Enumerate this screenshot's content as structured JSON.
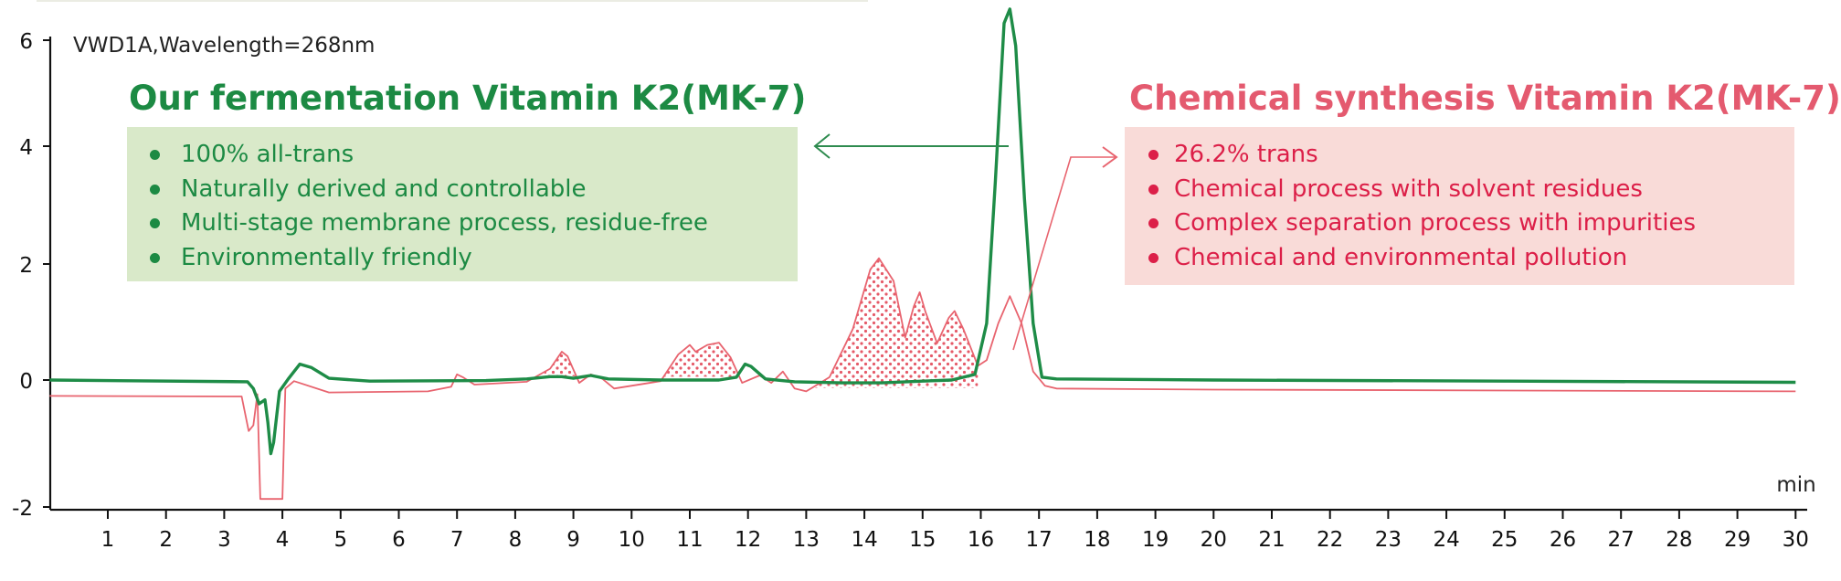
{
  "signal_label": "VWD1A,Wavelength=268nm",
  "left_panel": {
    "title": "Our fermentation Vitamin K2(MK-7)",
    "items": [
      "100% all-trans",
      "Naturally derived and controllable",
      "Multi-stage membrane process, residue-free",
      "Environmentally friendly"
    ],
    "color": "#1c8a43",
    "background": "#d9e9c9"
  },
  "right_panel": {
    "title": "Chemical synthesis Vitamin K2(MK-7)",
    "items": [
      "26.2% trans",
      "Chemical process with solvent residues",
      "Complex separation process with impurities",
      "Chemical and environmental pollution"
    ],
    "color": "#dc1f48",
    "background": "#f9dbd8"
  },
  "chart_data": {
    "type": "line",
    "x_unit_label": "min",
    "x_ticks": [
      1,
      2,
      3,
      4,
      5,
      6,
      7,
      8,
      9,
      10,
      11,
      12,
      13,
      14,
      15,
      16,
      17,
      18,
      19,
      20,
      21,
      22,
      23,
      24,
      25,
      26,
      27,
      28,
      29,
      30
    ],
    "y_ticks": [
      6,
      4,
      2,
      0,
      -2
    ],
    "xlim": [
      0.1,
      30.2
    ],
    "ylim": [
      -2.1,
      6.6
    ],
    "series": [
      {
        "color": "#1e8c47",
        "points": [
          [
            0,
            0
          ],
          [
            3.4,
            -0.03
          ],
          [
            3.5,
            -0.15
          ],
          [
            3.6,
            -0.42
          ],
          [
            3.7,
            -0.35
          ],
          [
            3.75,
            -0.75
          ],
          [
            3.8,
            -1.3
          ],
          [
            3.85,
            -1.1
          ],
          [
            3.95,
            -0.2
          ],
          [
            4.1,
            0.02
          ],
          [
            4.3,
            0.28
          ],
          [
            4.5,
            0.22
          ],
          [
            4.8,
            0.03
          ],
          [
            5.5,
            -0.02
          ],
          [
            7.5,
            -0.01
          ],
          [
            8.2,
            0.02
          ],
          [
            8.6,
            0.06
          ],
          [
            8.8,
            0.06
          ],
          [
            9.0,
            0.03
          ],
          [
            9.3,
            0.08
          ],
          [
            9.6,
            0.02
          ],
          [
            10.5,
            0
          ],
          [
            11.5,
            0
          ],
          [
            11.8,
            0.05
          ],
          [
            11.95,
            0.28
          ],
          [
            12.05,
            0.24
          ],
          [
            12.3,
            0.02
          ],
          [
            12.8,
            -0.03
          ],
          [
            13.6,
            -0.05
          ],
          [
            14.3,
            -0.05
          ],
          [
            15.0,
            -0.02
          ],
          [
            15.5,
            0
          ],
          [
            15.9,
            0.1
          ],
          [
            16.1,
            1.0
          ],
          [
            16.25,
            3.5
          ],
          [
            16.4,
            6.3
          ],
          [
            16.5,
            6.55
          ],
          [
            16.6,
            5.9
          ],
          [
            16.75,
            3.2
          ],
          [
            16.9,
            1.0
          ],
          [
            17.05,
            0.05
          ],
          [
            17.3,
            0.02
          ],
          [
            20,
            0
          ],
          [
            25,
            -0.02
          ],
          [
            30,
            -0.04
          ]
        ]
      },
      {
        "color": "#e8646f",
        "points": [
          [
            0,
            -0.28
          ],
          [
            3.3,
            -0.29
          ],
          [
            3.42,
            -0.9
          ],
          [
            3.5,
            -0.8
          ],
          [
            3.57,
            -0.25
          ],
          [
            3.62,
            -2.1
          ],
          [
            4.0,
            -2.1
          ],
          [
            4.05,
            -0.15
          ],
          [
            4.2,
            -0.02
          ],
          [
            4.8,
            -0.22
          ],
          [
            6.5,
            -0.2
          ],
          [
            6.9,
            -0.12
          ],
          [
            7.0,
            0.1
          ],
          [
            7.1,
            0.05
          ],
          [
            7.3,
            -0.08
          ],
          [
            8.2,
            -0.03
          ],
          [
            8.6,
            0.2
          ],
          [
            8.8,
            0.5
          ],
          [
            8.9,
            0.42
          ],
          [
            9.1,
            -0.05
          ],
          [
            9.3,
            0.1
          ],
          [
            9.5,
            0.02
          ],
          [
            9.7,
            -0.15
          ],
          [
            10.5,
            -0.02
          ],
          [
            10.8,
            0.45
          ],
          [
            11.0,
            0.62
          ],
          [
            11.1,
            0.5
          ],
          [
            11.3,
            0.62
          ],
          [
            11.5,
            0.66
          ],
          [
            11.7,
            0.4
          ],
          [
            11.9,
            -0.05
          ],
          [
            12.2,
            0.08
          ],
          [
            12.4,
            -0.05
          ],
          [
            12.6,
            0.15
          ],
          [
            12.8,
            -0.15
          ],
          [
            13.0,
            -0.2
          ],
          [
            13.4,
            0.05
          ],
          [
            13.8,
            0.9
          ],
          [
            14.1,
            1.95
          ],
          [
            14.25,
            2.15
          ],
          [
            14.5,
            1.75
          ],
          [
            14.7,
            0.75
          ],
          [
            14.85,
            1.3
          ],
          [
            14.95,
            1.55
          ],
          [
            15.05,
            1.2
          ],
          [
            15.25,
            0.65
          ],
          [
            15.45,
            1.1
          ],
          [
            15.55,
            1.22
          ],
          [
            15.7,
            0.9
          ],
          [
            15.95,
            0.25
          ],
          [
            16.1,
            0.35
          ],
          [
            16.3,
            1.0
          ],
          [
            16.5,
            1.48
          ],
          [
            16.7,
            1.0
          ],
          [
            16.9,
            0.15
          ],
          [
            17.1,
            -0.1
          ],
          [
            17.3,
            -0.15
          ],
          [
            20,
            -0.17
          ],
          [
            30,
            -0.2
          ]
        ]
      }
    ],
    "shaded_peak_ranges": [
      [
        8.5,
        9.05
      ],
      [
        10.55,
        11.8
      ],
      [
        13.1,
        15.95
      ]
    ]
  }
}
